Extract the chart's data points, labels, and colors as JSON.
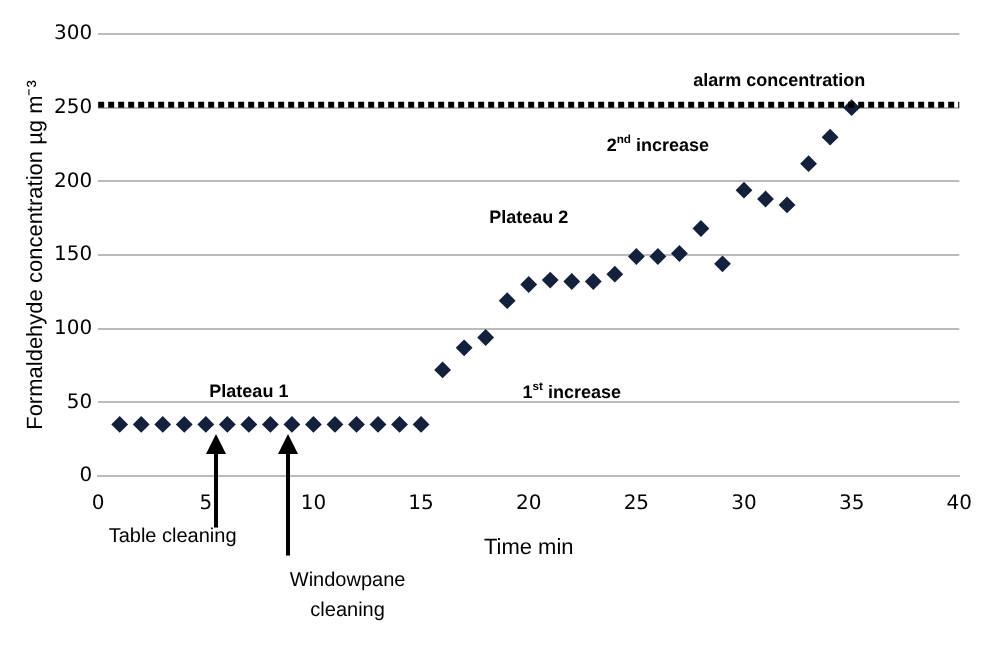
{
  "chart_data": {
    "type": "scatter",
    "xlabel": "Time min",
    "ylabel": "Formaldehyde concentration µg m⁻³",
    "x": [
      1,
      2,
      3,
      4,
      5,
      6,
      7,
      8,
      9,
      10,
      11,
      12,
      13,
      14,
      15,
      16,
      17,
      18,
      19,
      20,
      21,
      22,
      23,
      24,
      25,
      26,
      27,
      28,
      29,
      30,
      31,
      32,
      33,
      34,
      35
    ],
    "series": [
      {
        "color": "#14213d",
        "values": [
          35,
          35,
          35,
          35,
          35,
          35,
          35,
          35,
          35,
          35,
          35,
          35,
          35,
          35,
          35,
          72,
          87,
          94,
          119,
          130,
          133,
          132,
          132,
          137,
          149,
          149,
          151,
          168,
          144,
          194,
          188,
          184,
          212,
          230,
          250
        ]
      }
    ],
    "xlim": [
      0,
      40
    ],
    "xticks": [
      0,
      5,
      10,
      15,
      20,
      25,
      30,
      35,
      40
    ],
    "ylim": [
      0,
      300
    ],
    "yticks": [
      0,
      50,
      100,
      150,
      200,
      250,
      300
    ],
    "grid": "y",
    "legend": false,
    "marker": "diamond",
    "ref_lines": [
      {
        "axis": "y",
        "value": 252,
        "label": "alarm concentration",
        "color": "#000000",
        "line_style": "dotted"
      }
    ],
    "annotations": [
      "Plateau 1",
      "Plateau 2",
      "1$^{st}$ increase",
      "2$^{nd}$ increase",
      "Table cleaning",
      "Windowpane cleaning"
    ]
  }
}
